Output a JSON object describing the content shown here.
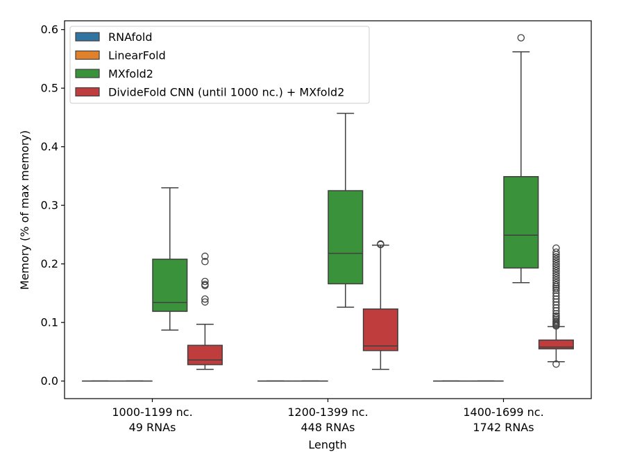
{
  "chart_data": {
    "type": "boxplot",
    "xlabel": "Length",
    "ylabel": "Memory (% of max memory)",
    "ylim": [
      -0.03,
      0.615
    ],
    "yticks": [
      0.0,
      0.1,
      0.2,
      0.3,
      0.4,
      0.5,
      0.6
    ],
    "ytick_labels": [
      "0.0",
      "0.1",
      "0.2",
      "0.3",
      "0.4",
      "0.5",
      "0.6"
    ],
    "grid": false,
    "legend_position": "top-left",
    "categories": [
      {
        "line1": "1000-1199 nc.",
        "line2": "49 RNAs"
      },
      {
        "line1": "1200-1399 nc.",
        "line2": "448 RNAs"
      },
      {
        "line1": "1400-1699 nc.",
        "line2": "1742 RNAs"
      }
    ],
    "series": [
      {
        "name": "RNAfold",
        "color": "#3274a1",
        "boxes": [
          {
            "whislo": 0.0,
            "q1": 0.0,
            "med": 0.0,
            "q3": 0.0,
            "whishi": 0.0,
            "fliers": []
          },
          {
            "whislo": 0.0,
            "q1": 0.0,
            "med": 0.0,
            "q3": 0.0,
            "whishi": 0.0,
            "fliers": []
          },
          {
            "whislo": 0.0,
            "q1": 0.0,
            "med": 0.0,
            "q3": 0.0,
            "whishi": 0.0,
            "fliers": []
          }
        ]
      },
      {
        "name": "LinearFold",
        "color": "#e1812c",
        "boxes": [
          {
            "whislo": 0.0,
            "q1": 0.0,
            "med": 0.0,
            "q3": 0.0,
            "whishi": 0.0,
            "fliers": []
          },
          {
            "whislo": 0.0,
            "q1": 0.0,
            "med": 0.0,
            "q3": 0.0,
            "whishi": 0.0,
            "fliers": []
          },
          {
            "whislo": 0.0,
            "q1": 0.0,
            "med": 0.0,
            "q3": 0.0,
            "whishi": 0.0,
            "fliers": []
          }
        ]
      },
      {
        "name": "MXfold2",
        "color": "#3a923a",
        "boxes": [
          {
            "whislo": 0.087,
            "q1": 0.119,
            "med": 0.134,
            "q3": 0.208,
            "whishi": 0.33,
            "fliers": []
          },
          {
            "whislo": 0.126,
            "q1": 0.166,
            "med": 0.218,
            "q3": 0.325,
            "whishi": 0.457,
            "fliers": []
          },
          {
            "whislo": 0.168,
            "q1": 0.193,
            "med": 0.249,
            "q3": 0.349,
            "whishi": 0.562,
            "fliers": [
              0.586
            ]
          }
        ]
      },
      {
        "name": "DivideFold CNN (until 1000 nc.) + MXfold2",
        "color": "#c03d3e",
        "boxes": [
          {
            "whislo": 0.02,
            "q1": 0.028,
            "med": 0.036,
            "q3": 0.061,
            "whishi": 0.097,
            "fliers": [
              0.135,
              0.14,
              0.163,
              0.165,
              0.17,
              0.204,
              0.213
            ]
          },
          {
            "whislo": 0.02,
            "q1": 0.052,
            "med": 0.06,
            "q3": 0.123,
            "whishi": 0.232,
            "fliers": [
              0.233,
              0.234
            ]
          },
          {
            "whislo": 0.033,
            "q1": 0.055,
            "med": 0.058,
            "q3": 0.07,
            "whishi": 0.093,
            "fliers": [
              0.029,
              0.094,
              0.096,
              0.098,
              0.1,
              0.102,
              0.105,
              0.108,
              0.111,
              0.115,
              0.12,
              0.125,
              0.13,
              0.135,
              0.14,
              0.145,
              0.15,
              0.155,
              0.158,
              0.161,
              0.164,
              0.168,
              0.172,
              0.176,
              0.18,
              0.184,
              0.188,
              0.192,
              0.196,
              0.2,
              0.204,
              0.208,
              0.212,
              0.216,
              0.22,
              0.227
            ]
          }
        ]
      }
    ]
  }
}
